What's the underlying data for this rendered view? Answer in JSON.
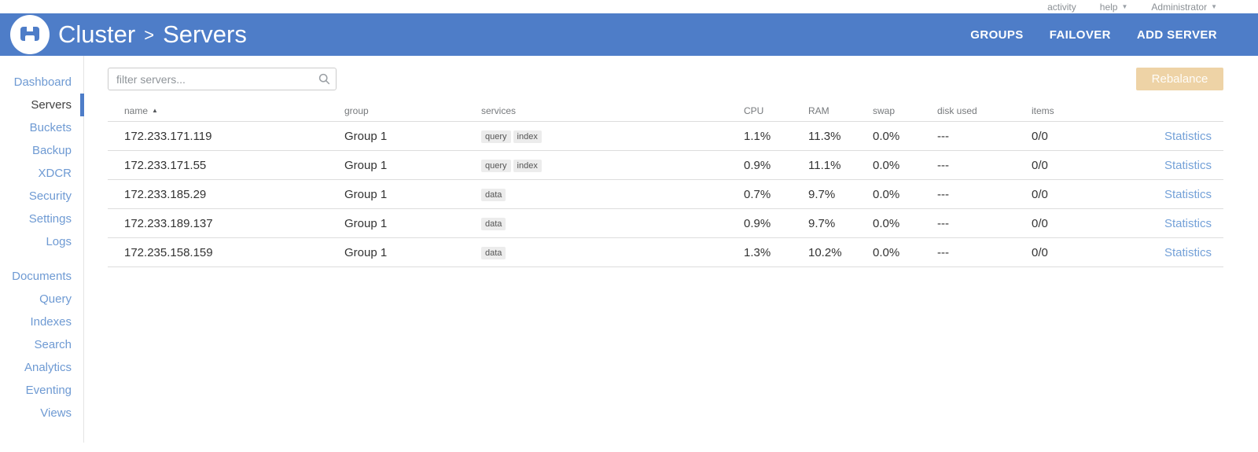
{
  "topbar": {
    "activity": "activity",
    "help": "help",
    "user": "Administrator"
  },
  "header": {
    "breadcrumb": {
      "section": "Cluster",
      "separator": ">",
      "page": "Servers"
    },
    "actions": [
      "GROUPS",
      "FAILOVER",
      "ADD SERVER"
    ]
  },
  "sidebar": {
    "groups": [
      {
        "items": [
          {
            "label": "Dashboard",
            "active": false
          },
          {
            "label": "Servers",
            "active": true
          },
          {
            "label": "Buckets",
            "active": false
          },
          {
            "label": "Backup",
            "active": false
          },
          {
            "label": "XDCR",
            "active": false
          },
          {
            "label": "Security",
            "active": false
          },
          {
            "label": "Settings",
            "active": false
          },
          {
            "label": "Logs",
            "active": false
          }
        ]
      },
      {
        "items": [
          {
            "label": "Documents",
            "active": false
          },
          {
            "label": "Query",
            "active": false
          },
          {
            "label": "Indexes",
            "active": false
          },
          {
            "label": "Search",
            "active": false
          },
          {
            "label": "Analytics",
            "active": false
          },
          {
            "label": "Eventing",
            "active": false
          },
          {
            "label": "Views",
            "active": false
          }
        ]
      }
    ]
  },
  "toolbar": {
    "filter_placeholder": "filter servers...",
    "rebalance_label": "Rebalance"
  },
  "table": {
    "columns": [
      "name",
      "group",
      "services",
      "CPU",
      "RAM",
      "swap",
      "disk used",
      "items"
    ],
    "sort": {
      "column": "name",
      "direction": "asc"
    },
    "rows": [
      {
        "name": "172.233.171.119",
        "group": "Group 1",
        "services": [
          "query",
          "index"
        ],
        "cpu": "1.1%",
        "ram": "11.3%",
        "swap": "0.0%",
        "disk_used": "---",
        "items": "0/0",
        "link": "Statistics",
        "status": "healthy"
      },
      {
        "name": "172.233.171.55",
        "group": "Group 1",
        "services": [
          "query",
          "index"
        ],
        "cpu": "0.9%",
        "ram": "11.1%",
        "swap": "0.0%",
        "disk_used": "---",
        "items": "0/0",
        "link": "Statistics",
        "status": "healthy"
      },
      {
        "name": "172.233.185.29",
        "group": "Group 1",
        "services": [
          "data"
        ],
        "cpu": "0.7%",
        "ram": "9.7%",
        "swap": "0.0%",
        "disk_used": "---",
        "items": "0/0",
        "link": "Statistics",
        "status": "healthy"
      },
      {
        "name": "172.233.189.137",
        "group": "Group 1",
        "services": [
          "data"
        ],
        "cpu": "0.9%",
        "ram": "9.7%",
        "swap": "0.0%",
        "disk_used": "---",
        "items": "0/0",
        "link": "Statistics",
        "status": "healthy"
      },
      {
        "name": "172.235.158.159",
        "group": "Group 1",
        "services": [
          "data"
        ],
        "cpu": "1.3%",
        "ram": "10.2%",
        "swap": "0.0%",
        "disk_used": "---",
        "items": "0/0",
        "link": "Statistics",
        "status": "healthy"
      }
    ]
  },
  "colors": {
    "header_blue": "#4e7dc8",
    "sidebar_link": "#6e9ad3",
    "active_text": "#404040",
    "status_green": "#8dc77c",
    "rebalance_disabled": "#eed3a6",
    "stats_link": "#74a1d8",
    "badge_bg": "#ececec"
  }
}
